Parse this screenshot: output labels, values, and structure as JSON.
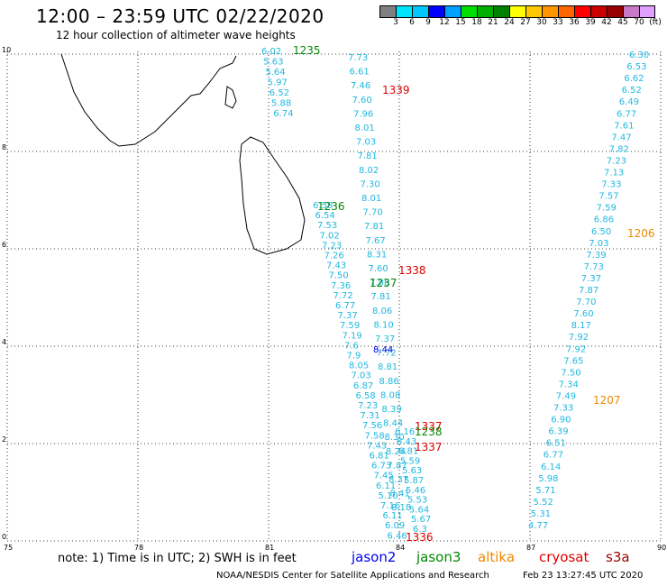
{
  "header": {
    "title": "12:00 – 23:59 UTC 02/22/2020",
    "subtitle": "12 hour collection of altimeter wave heights"
  },
  "scale": {
    "colors": [
      "#808080",
      "#00e5ff",
      "#00c8ff",
      "#0000ff",
      "#00a0ff",
      "#00e000",
      "#00b000",
      "#008000",
      "#ffff00",
      "#ffc800",
      "#ff9600",
      "#ff6400",
      "#ff0000",
      "#c80000",
      "#960000",
      "#c87ac8",
      "#e0a0ff",
      "#d000d0",
      "#000000"
    ],
    "labels": [
      "3",
      "6",
      "9",
      "12",
      "15",
      "18",
      "21",
      "24",
      "27",
      "30",
      "33",
      "36",
      "39",
      "42",
      "45",
      "70",
      "(ft)"
    ]
  },
  "axes": {
    "x_ticks": [
      "75",
      "78",
      "81",
      "84",
      "87",
      "90"
    ],
    "y_ticks": [
      "0",
      "2",
      "4",
      "6",
      "8",
      "10"
    ]
  },
  "tracks": [
    {
      "name": "jason2",
      "color": "#0000ee",
      "time_labels": [],
      "values": [
        "8.44"
      ]
    },
    {
      "name": "jason3",
      "color": "#008800",
      "time_labels": [
        "1235",
        "1236",
        "1237",
        "1238"
      ]
    },
    {
      "name": "altika",
      "color": "#ee8800",
      "time_labels": [
        "1206",
        "1207"
      ]
    },
    {
      "name": "cryosat",
      "color": "#dd0000",
      "time_labels": [
        "1339",
        "1338",
        "1337",
        "1337",
        "1336"
      ]
    }
  ],
  "track_a_values": [
    "6.02",
    "5.63",
    "5.64",
    "5.97",
    "6.52",
    "5.88",
    "6.74"
  ],
  "track_b_values": [
    "7.73",
    "6.61",
    "7.46",
    "7.60",
    "7.96",
    "8.01",
    "7.03",
    "7.81",
    "8.02",
    "7.30",
    "8.01",
    "7.70",
    "7.81",
    "7.67",
    "8.31",
    "7.60",
    "7.88",
    "7.81",
    "8.06",
    "8.10",
    "7.37",
    "7.72",
    "8.81",
    "8.86",
    "8.08",
    "8.39",
    "8.44",
    "8.30",
    "8.24",
    "7.87",
    "8.37",
    "8.41",
    "8.18"
  ],
  "track_c_values": [
    "6.58",
    "6.54",
    "7.53",
    "7.02",
    "7.23",
    "7.26",
    "7.43",
    "7.50",
    "7.36",
    "7.72",
    "6.77",
    "7.37",
    "7.59",
    "7.19",
    "7.6",
    "7.9",
    "8.05",
    "7.03",
    "6.87",
    "6.58",
    "7.23",
    "7.31",
    "7.56",
    "7.58",
    "7.43",
    "6.81",
    "6.73",
    "7.45",
    "6.11",
    "5.10",
    "7.16",
    "6.11",
    "6.09",
    "6.46"
  ],
  "track_d_values": [
    "6.30",
    "6.53",
    "6.62",
    "6.52",
    "6.49",
    "6.77",
    "7.61",
    "7.47",
    "7.82",
    "7.23",
    "7.13",
    "7.33",
    "7.57",
    "7.59",
    "6.86",
    "6.50",
    "7.03",
    "7.39",
    "7.73",
    "7.37",
    "7.87",
    "7.70",
    "7.60",
    "8.17",
    "7.92",
    "7.92",
    "7.65",
    "7.50",
    "7.34",
    "7.49",
    "7.33",
    "6.90",
    "6.39",
    "6.51",
    "6.77",
    "6.14",
    "5.98",
    "5.71",
    "5.52",
    "5.31",
    "4.77"
  ],
  "track_e_values": [
    "6.16",
    "6.43",
    "6.81",
    "5.59",
    "5.63",
    "5.87",
    "5.46",
    "5.53",
    "5.64",
    "5.67",
    "6.3"
  ],
  "legend": {
    "note": "note: 1) Time is in UTC; 2) SWH is in feet",
    "items": [
      {
        "label": "jason2",
        "color": "#0000ee"
      },
      {
        "label": "jason3",
        "color": "#008800"
      },
      {
        "label": "altika",
        "color": "#ee8800"
      },
      {
        "label": "cryosat",
        "color": "#dd0000"
      },
      {
        "label": "s3a",
        "color": "#990000"
      }
    ]
  },
  "footer": {
    "credit": "NOAA/NESDIS Center for Satellite Applications and Research",
    "timestamp": "Feb 23 13:27:45 UTC 2020"
  }
}
